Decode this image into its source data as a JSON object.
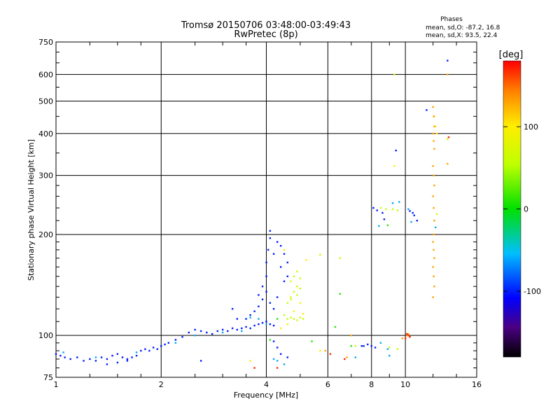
{
  "chart_data": {
    "type": "scatter",
    "title": "Tromsø 20150706 03:48:00-03:49:43",
    "subtitle": "RwPretec (8p)",
    "xlabel": "Frequency [MHz]",
    "ylabel": "Stationary phase Virtual Height [km]",
    "x_scale": "log",
    "y_scale": "log",
    "xlim": [
      1,
      16
    ],
    "ylim": [
      75,
      750
    ],
    "x_ticks": [
      1,
      2,
      4,
      6,
      8,
      10,
      16
    ],
    "x_tick_labels": [
      "1",
      "2",
      "4",
      "6",
      "8",
      "10",
      "16"
    ],
    "y_ticks": [
      75,
      100,
      200,
      300,
      400,
      500,
      600,
      750
    ],
    "y_tick_labels": [
      "75",
      "100",
      "200",
      "300",
      "400",
      "500",
      "600",
      "750"
    ],
    "grid": true,
    "stats": {
      "heading": "Phases",
      "line_o": "mean, sd,O: -87.2, 16.8",
      "line_x": "mean, sd,X:  93.5, 22.4"
    },
    "colorbar": {
      "label": "[deg]",
      "range": [
        -180,
        180
      ],
      "ticks": [
        100,
        0,
        -100
      ],
      "tick_labels": [
        "100",
        "0",
        "-100"
      ]
    },
    "point_groups": [
      {
        "phase": -100,
        "points": [
          [
            1.0,
            88
          ],
          [
            1.03,
            87
          ],
          [
            1.06,
            86
          ],
          [
            1.1,
            85
          ],
          [
            1.15,
            86
          ],
          [
            1.2,
            84
          ],
          [
            1.25,
            85
          ],
          [
            1.3,
            84
          ],
          [
            1.35,
            86
          ],
          [
            1.4,
            85
          ],
          [
            1.45,
            87
          ],
          [
            1.5,
            88
          ],
          [
            1.55,
            86
          ],
          [
            1.6,
            85
          ],
          [
            1.65,
            86
          ],
          [
            1.7,
            87
          ],
          [
            1.75,
            90
          ],
          [
            1.8,
            91
          ],
          [
            1.85,
            90
          ],
          [
            1.9,
            92
          ],
          [
            1.95,
            91
          ],
          [
            2.0,
            93
          ],
          [
            2.05,
            94
          ],
          [
            2.1,
            95
          ],
          [
            2.2,
            97
          ],
          [
            2.3,
            99
          ],
          [
            2.4,
            102
          ],
          [
            2.5,
            104
          ],
          [
            2.6,
            103
          ],
          [
            2.7,
            102
          ],
          [
            2.8,
            101
          ],
          [
            2.9,
            103
          ],
          [
            3.0,
            104
          ],
          [
            3.1,
            103
          ],
          [
            3.2,
            105
          ],
          [
            3.3,
            104
          ],
          [
            3.4,
            105
          ],
          [
            3.5,
            106
          ],
          [
            3.6,
            105
          ],
          [
            3.7,
            107
          ],
          [
            3.8,
            108
          ],
          [
            3.9,
            109
          ],
          [
            4.0,
            110
          ],
          [
            4.1,
            108
          ],
          [
            4.2,
            107
          ],
          [
            3.5,
            112
          ],
          [
            3.6,
            115
          ],
          [
            3.7,
            118
          ],
          [
            3.8,
            122
          ],
          [
            3.9,
            128
          ],
          [
            4.0,
            135
          ],
          [
            4.0,
            150
          ],
          [
            4.0,
            165
          ],
          [
            4.05,
            180
          ],
          [
            4.1,
            195
          ],
          [
            4.1,
            205
          ],
          [
            4.2,
            175
          ],
          [
            4.3,
            190
          ],
          [
            4.4,
            160
          ],
          [
            4.5,
            145
          ],
          [
            4.3,
            130
          ],
          [
            4.2,
            120
          ],
          [
            4.1,
            125
          ],
          [
            3.9,
            140
          ],
          [
            3.8,
            132
          ],
          [
            3.3,
            112
          ],
          [
            3.2,
            120
          ],
          [
            4.4,
            185
          ],
          [
            4.5,
            175
          ],
          [
            4.6,
            150
          ],
          [
            4.6,
            165
          ],
          [
            1.4,
            82
          ],
          [
            1.5,
            83
          ],
          [
            1.6,
            84
          ],
          [
            2.6,
            84
          ],
          [
            4.2,
            96
          ],
          [
            4.3,
            92
          ],
          [
            4.4,
            88
          ],
          [
            4.6,
            86
          ],
          [
            7.5,
            93
          ],
          [
            7.6,
            93
          ],
          [
            7.8,
            94
          ],
          [
            8.0,
            93
          ],
          [
            8.2,
            92
          ],
          [
            8.1,
            240
          ],
          [
            8.3,
            236
          ],
          [
            8.6,
            232
          ],
          [
            8.7,
            222
          ],
          [
            9.4,
            356
          ],
          [
            10.3,
            235
          ],
          [
            10.5,
            232
          ],
          [
            10.6,
            228
          ],
          [
            10.8,
            220
          ],
          [
            11.5,
            470
          ],
          [
            13.2,
            660
          ]
        ]
      },
      {
        "phase": -60,
        "points": [
          [
            1.05,
            89
          ],
          [
            1.3,
            86
          ],
          [
            1.7,
            89
          ],
          [
            2.2,
            95
          ],
          [
            2.5,
            100
          ],
          [
            3.0,
            102
          ],
          [
            3.4,
            103
          ],
          [
            4.0,
            108
          ],
          [
            3.8,
            112
          ],
          [
            3.6,
            113
          ],
          [
            4.2,
            85
          ],
          [
            4.3,
            84
          ],
          [
            4.5,
            82
          ],
          [
            7.2,
            86
          ],
          [
            8.5,
            95
          ],
          [
            8.9,
            91
          ],
          [
            9.0,
            87
          ],
          [
            9.2,
            248
          ],
          [
            9.6,
            250
          ],
          [
            10.2,
            238
          ],
          [
            10.4,
            218
          ],
          [
            8.4,
            212
          ],
          [
            12.2,
            210
          ]
        ]
      },
      {
        "phase": 10,
        "points": [
          [
            5.4,
            96
          ],
          [
            6.3,
            106
          ],
          [
            6.5,
            133
          ],
          [
            7.0,
            93
          ],
          [
            8.9,
            213
          ],
          [
            4.3,
            112
          ],
          [
            4.1,
            97
          ]
        ]
      },
      {
        "phase": 60,
        "points": [
          [
            4.5,
            115
          ],
          [
            4.6,
            112
          ],
          [
            4.7,
            113
          ],
          [
            4.8,
            112
          ],
          [
            4.9,
            111
          ],
          [
            5.0,
            113
          ],
          [
            5.1,
            112
          ],
          [
            4.6,
            125
          ],
          [
            4.7,
            130
          ],
          [
            4.8,
            135
          ],
          [
            4.9,
            140
          ],
          [
            4.7,
            145
          ],
          [
            4.8,
            150
          ],
          [
            4.9,
            155
          ],
          [
            5.0,
            148
          ],
          [
            5.0,
            138
          ],
          [
            4.9,
            132
          ],
          [
            4.7,
            128
          ],
          [
            5.7,
            174
          ],
          [
            6.5,
            170
          ],
          [
            8.5,
            240
          ],
          [
            8.8,
            238
          ],
          [
            9.2,
            238
          ],
          [
            9.5,
            236
          ],
          [
            9.0,
            92
          ],
          [
            9.5,
            91
          ],
          [
            7.2,
            93
          ],
          [
            9.3,
            600
          ],
          [
            12.3,
            230
          ],
          [
            13.2,
            385
          ]
        ]
      },
      {
        "phase": 100,
        "points": [
          [
            4.4,
            105
          ],
          [
            4.6,
            108
          ],
          [
            4.8,
            118
          ],
          [
            5.0,
            125
          ],
          [
            5.1,
            116
          ],
          [
            4.5,
            180
          ],
          [
            5.2,
            168
          ],
          [
            9.3,
            320
          ],
          [
            3.6,
            84
          ],
          [
            5.7,
            90
          ],
          [
            12.1,
            450
          ],
          [
            12.2,
            420
          ],
          [
            12.3,
            400
          ]
        ]
      },
      {
        "phase": 130,
        "points": [
          [
            12.0,
            480
          ],
          [
            12.05,
            450
          ],
          [
            12.1,
            420
          ],
          [
            12.0,
            400
          ],
          [
            12.05,
            380
          ],
          [
            12.1,
            360
          ],
          [
            12.0,
            320
          ],
          [
            12.05,
            300
          ],
          [
            12.1,
            280
          ],
          [
            12.0,
            260
          ],
          [
            12.05,
            240
          ],
          [
            12.1,
            220
          ],
          [
            12.05,
            200
          ],
          [
            12.0,
            190
          ],
          [
            12.05,
            180
          ],
          [
            12.1,
            170
          ],
          [
            12.0,
            160
          ],
          [
            12.05,
            150
          ],
          [
            12.1,
            140
          ],
          [
            12.0,
            130
          ],
          [
            13.2,
            325
          ],
          [
            10.1,
            100
          ],
          [
            10.2,
            101
          ],
          [
            10.3,
            99
          ],
          [
            9.8,
            98
          ],
          [
            5.9,
            90
          ],
          [
            6.8,
            86
          ],
          [
            7.0,
            100
          ],
          [
            13.2,
            600
          ]
        ]
      },
      {
        "phase": 170,
        "points": [
          [
            10.1,
            101
          ],
          [
            10.2,
            100
          ],
          [
            10.3,
            99
          ],
          [
            10.0,
            98
          ],
          [
            6.1,
            88
          ],
          [
            6.7,
            85
          ],
          [
            4.3,
            80
          ],
          [
            3.7,
            80
          ],
          [
            13.3,
            390
          ]
        ]
      }
    ]
  }
}
